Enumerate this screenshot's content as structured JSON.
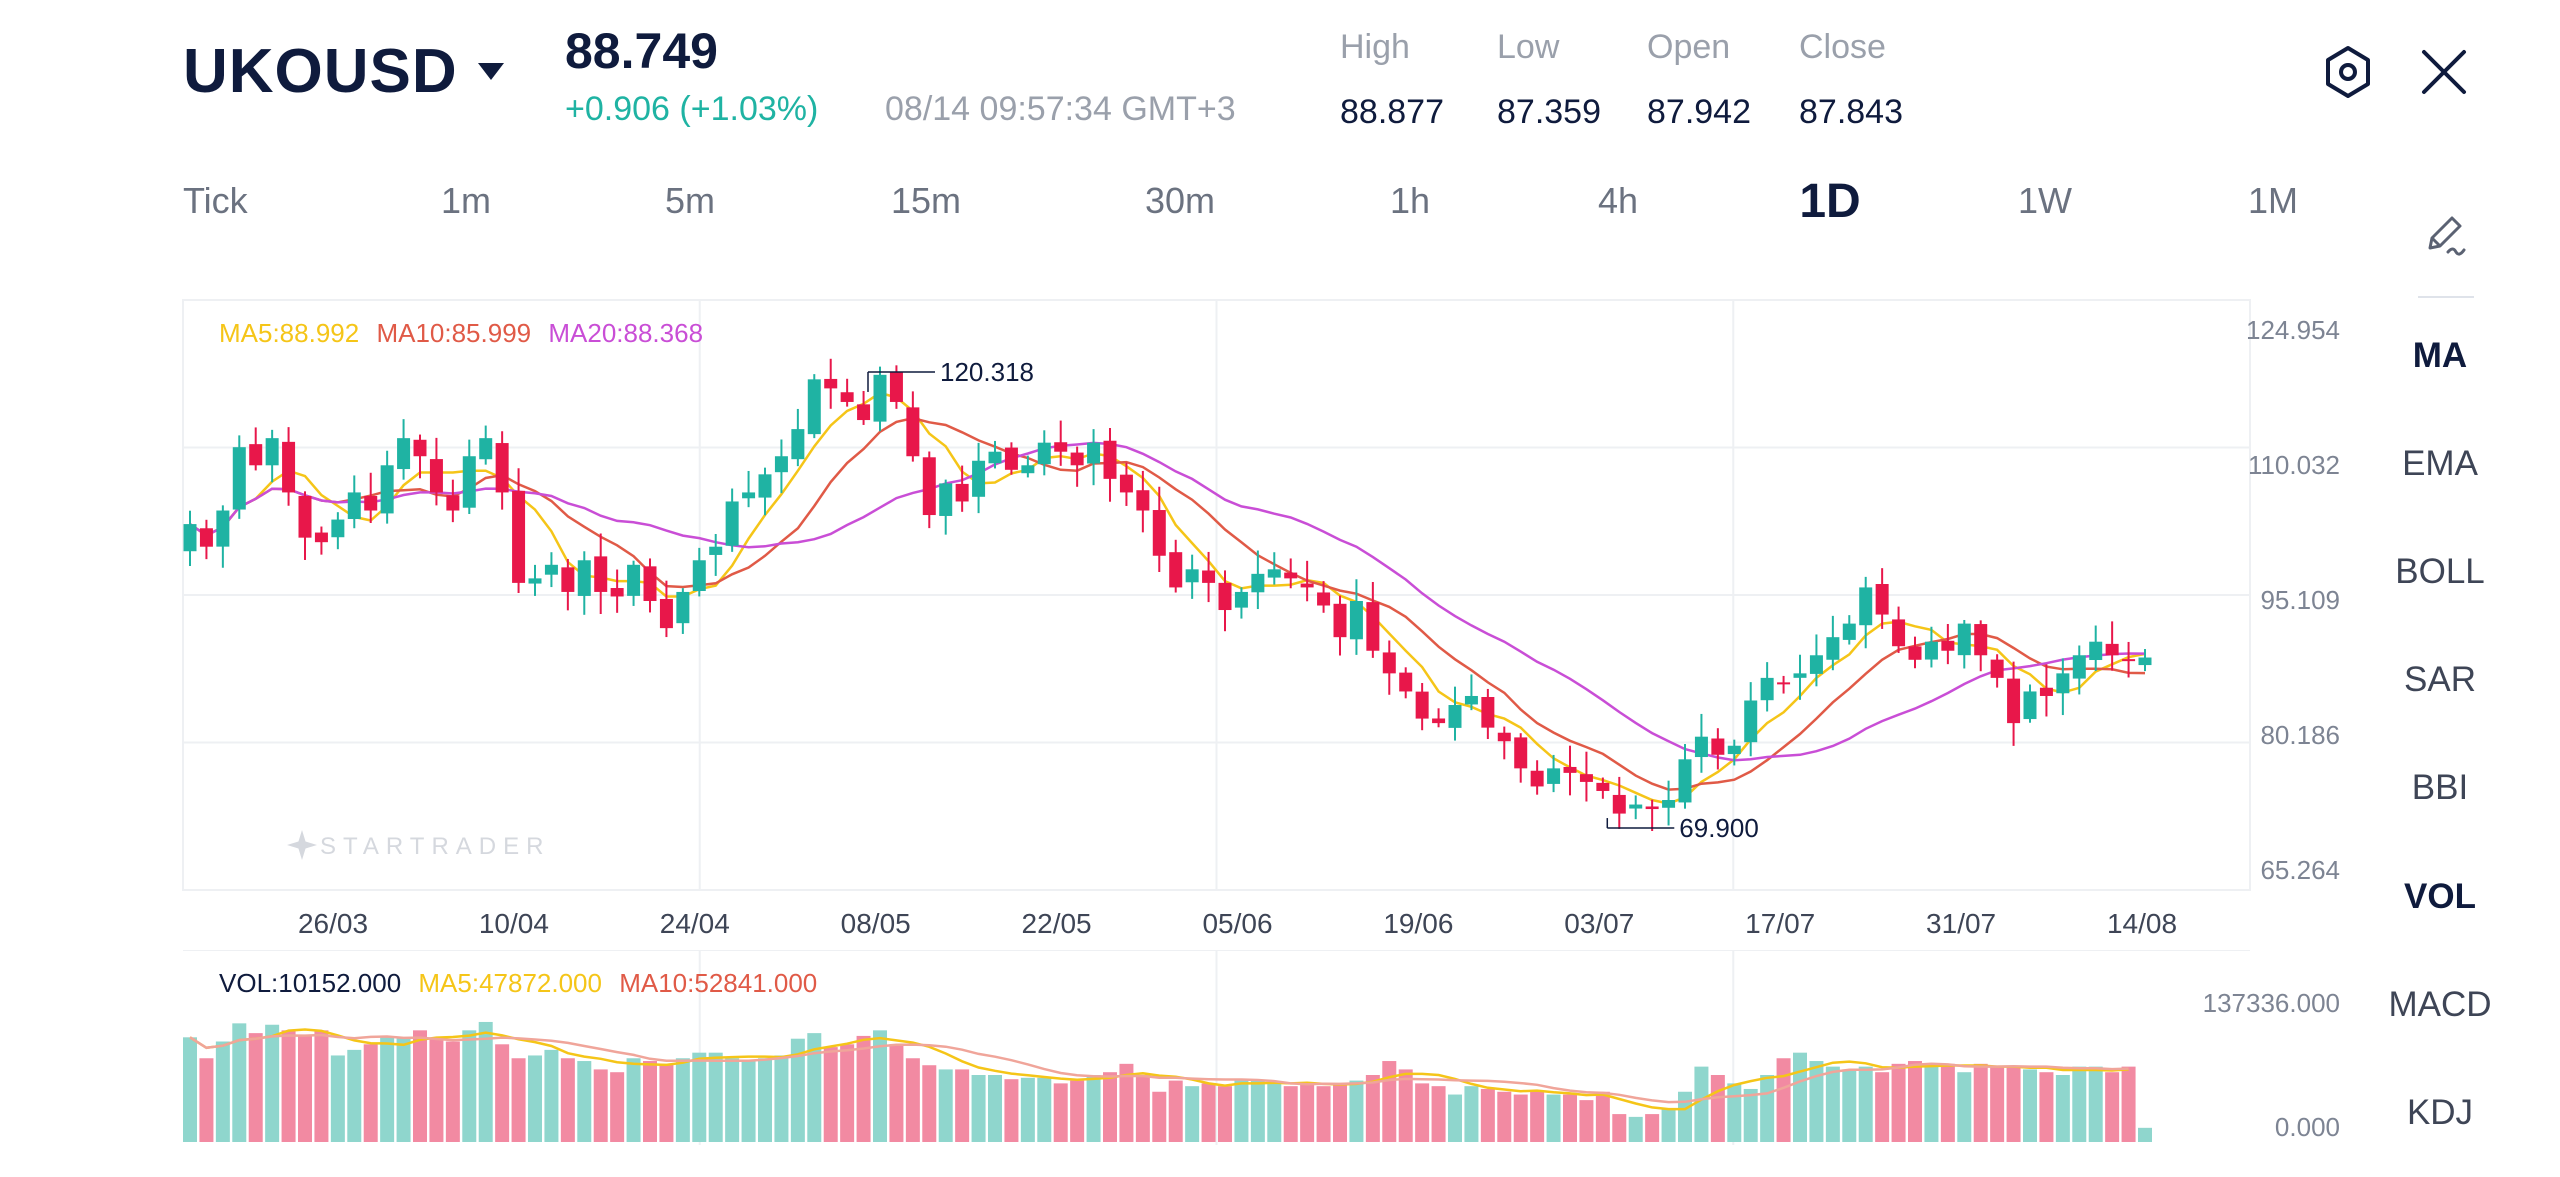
{
  "header": {
    "symbol": "UKOUSD",
    "price": "88.749",
    "change": "+0.906",
    "change_pct": "(+1.03%)",
    "timestamp": "08/14 09:57:34 GMT+3",
    "ohlc": [
      {
        "label": "High",
        "value": "88.877"
      },
      {
        "label": "Low",
        "value": "87.359"
      },
      {
        "label": "Open",
        "value": "87.942"
      },
      {
        "label": "Close",
        "value": "87.843"
      }
    ]
  },
  "timeframes": [
    {
      "label": "Tick",
      "active": false
    },
    {
      "label": "1m",
      "active": false
    },
    {
      "label": "5m",
      "active": false
    },
    {
      "label": "15m",
      "active": false
    },
    {
      "label": "30m",
      "active": false
    },
    {
      "label": "1h",
      "active": false
    },
    {
      "label": "4h",
      "active": false
    },
    {
      "label": "1D",
      "active": true
    },
    {
      "label": "1W",
      "active": false
    },
    {
      "label": "1M",
      "active": false
    }
  ],
  "sidebar": {
    "items": [
      {
        "label": "MA",
        "active": true
      },
      {
        "label": "EMA",
        "active": false
      },
      {
        "label": "BOLL",
        "active": false
      },
      {
        "label": "SAR",
        "active": false
      },
      {
        "label": "BBI",
        "active": false
      },
      {
        "label": "VOL",
        "active": true
      },
      {
        "label": "MACD",
        "active": false
      },
      {
        "label": "KDJ",
        "active": false
      }
    ]
  },
  "indicators": {
    "ma5": "MA5:88.992",
    "ma10": "MA10:85.999",
    "ma20": "MA20:88.368",
    "vol": "VOL:10152.000",
    "vol_ma5": "MA5:47872.000",
    "vol_ma10": "MA10:52841.000"
  },
  "watermark": "STARTRADER",
  "colors": {
    "up": "#1fb3a3",
    "down": "#e8174a",
    "ma5": "#f5c518",
    "ma10": "#e05a47",
    "ma20": "#c94ed6",
    "vol_up": "#8fd6cd",
    "vol_down": "#f28aa2",
    "text_dark": "#0f1b3d",
    "text_grey": "#9aa0ab"
  },
  "chart_data": {
    "type": "candlestick",
    "title": "",
    "xlabel": "",
    "ylabel": "",
    "x_ticks": [
      "26/03",
      "10/04",
      "24/04",
      "08/05",
      "22/05",
      "05/06",
      "19/06",
      "03/07",
      "17/07",
      "31/07",
      "14/08"
    ],
    "y_ticks": [
      "124.954",
      "110.032",
      "95.109",
      "80.186",
      "65.264"
    ],
    "ylim": [
      65.264,
      124.954
    ],
    "annotations": [
      {
        "label": "120.318",
        "value": 120.318,
        "type": "max"
      },
      {
        "label": "69.900",
        "value": 69.9,
        "type": "min"
      }
    ],
    "grid": true,
    "candle_close_path": [
      103.5,
      101.0,
      105.0,
      112.0,
      110.0,
      113.0,
      107.0,
      102.0,
      101.5,
      104.0,
      107.0,
      105.0,
      110.0,
      113.0,
      111.0,
      107.0,
      105.0,
      111.0,
      113.0,
      107.0,
      97.0,
      97.5,
      99.0,
      96.0,
      99.5,
      96.0,
      95.5,
      99.0,
      95.0,
      92.0,
      96.0,
      99.5,
      101.0,
      106.0,
      107.0,
      109.0,
      111.0,
      114.0,
      119.5,
      118.5,
      117.0,
      115.0,
      120.0,
      117.0,
      111.0,
      104.5,
      108.0,
      106.0,
      110.5,
      111.5,
      109.5,
      110.0,
      112.5,
      111.5,
      110.0,
      112.5,
      108.5,
      107.0,
      105.0,
      100.0,
      96.5,
      98.5,
      97.0,
      94.0,
      96.0,
      98.0,
      98.5,
      97.5,
      96.5,
      94.5,
      91.0,
      95.0,
      89.5,
      87.0,
      85.0,
      82.0,
      81.5,
      83.5,
      84.5,
      81.0,
      79.5,
      76.5,
      74.5,
      76.5,
      76.0,
      75.0,
      74.0,
      71.5,
      72.5,
      72.0,
      73.0,
      77.5,
      80.0,
      78.0,
      79.0,
      84.0,
      86.5,
      86.0,
      87.0,
      89.0,
      91.0,
      92.5,
      96.5,
      93.5,
      90.0,
      88.5,
      90.5,
      89.5,
      92.5,
      89.0,
      86.5,
      81.5,
      85.0,
      84.5,
      87.0,
      89.0,
      90.5,
      89.0,
      88.5,
      88.75
    ],
    "volume_series": [
      {
        "name": "VOL",
        "values": [
          75000,
          60000,
          72000,
          85000,
          78000,
          84000,
          80000,
          76000,
          80000,
          62000,
          66000,
          70000,
          75000,
          75000,
          80000,
          74000,
          72000,
          80000,
          86000,
          70000,
          60000,
          62000,
          66000,
          60000,
          58000,
          52000,
          50000,
          60000,
          58000,
          56000,
          60000,
          64000,
          64000,
          60000,
          58000,
          60000,
          62000,
          74000,
          78000,
          68000,
          70000,
          76000,
          80000,
          70000,
          60000,
          55000,
          52000,
          52000,
          48000,
          48000,
          45000,
          46000,
          46000,
          42000,
          44000,
          48000,
          50000,
          56000,
          48000,
          36000,
          44000,
          40000,
          42000,
          40000,
          44000,
          44000,
          42000,
          40000,
          42000,
          40000,
          42000,
          44000,
          48000,
          58000,
          52000,
          42000,
          40000,
          34000,
          40000,
          38000,
          36000,
          34000,
          36000,
          34000,
          34000,
          30000,
          36000,
          20000,
          18000,
          20000,
          24000,
          36000,
          54000,
          48000,
          42000,
          38000,
          48000,
          60000,
          64000,
          58000,
          54000,
          52000,
          54000,
          50000,
          56000,
          58000,
          54000,
          56000,
          50000,
          56000,
          54000,
          54000,
          52000,
          50000,
          48000,
          54000,
          54000,
          50000,
          54000,
          10152
        ]
      }
    ],
    "volume_ylim": [
      0,
      137336
    ],
    "volume_y_ticks": [
      "137336.000",
      "0.000"
    ]
  }
}
